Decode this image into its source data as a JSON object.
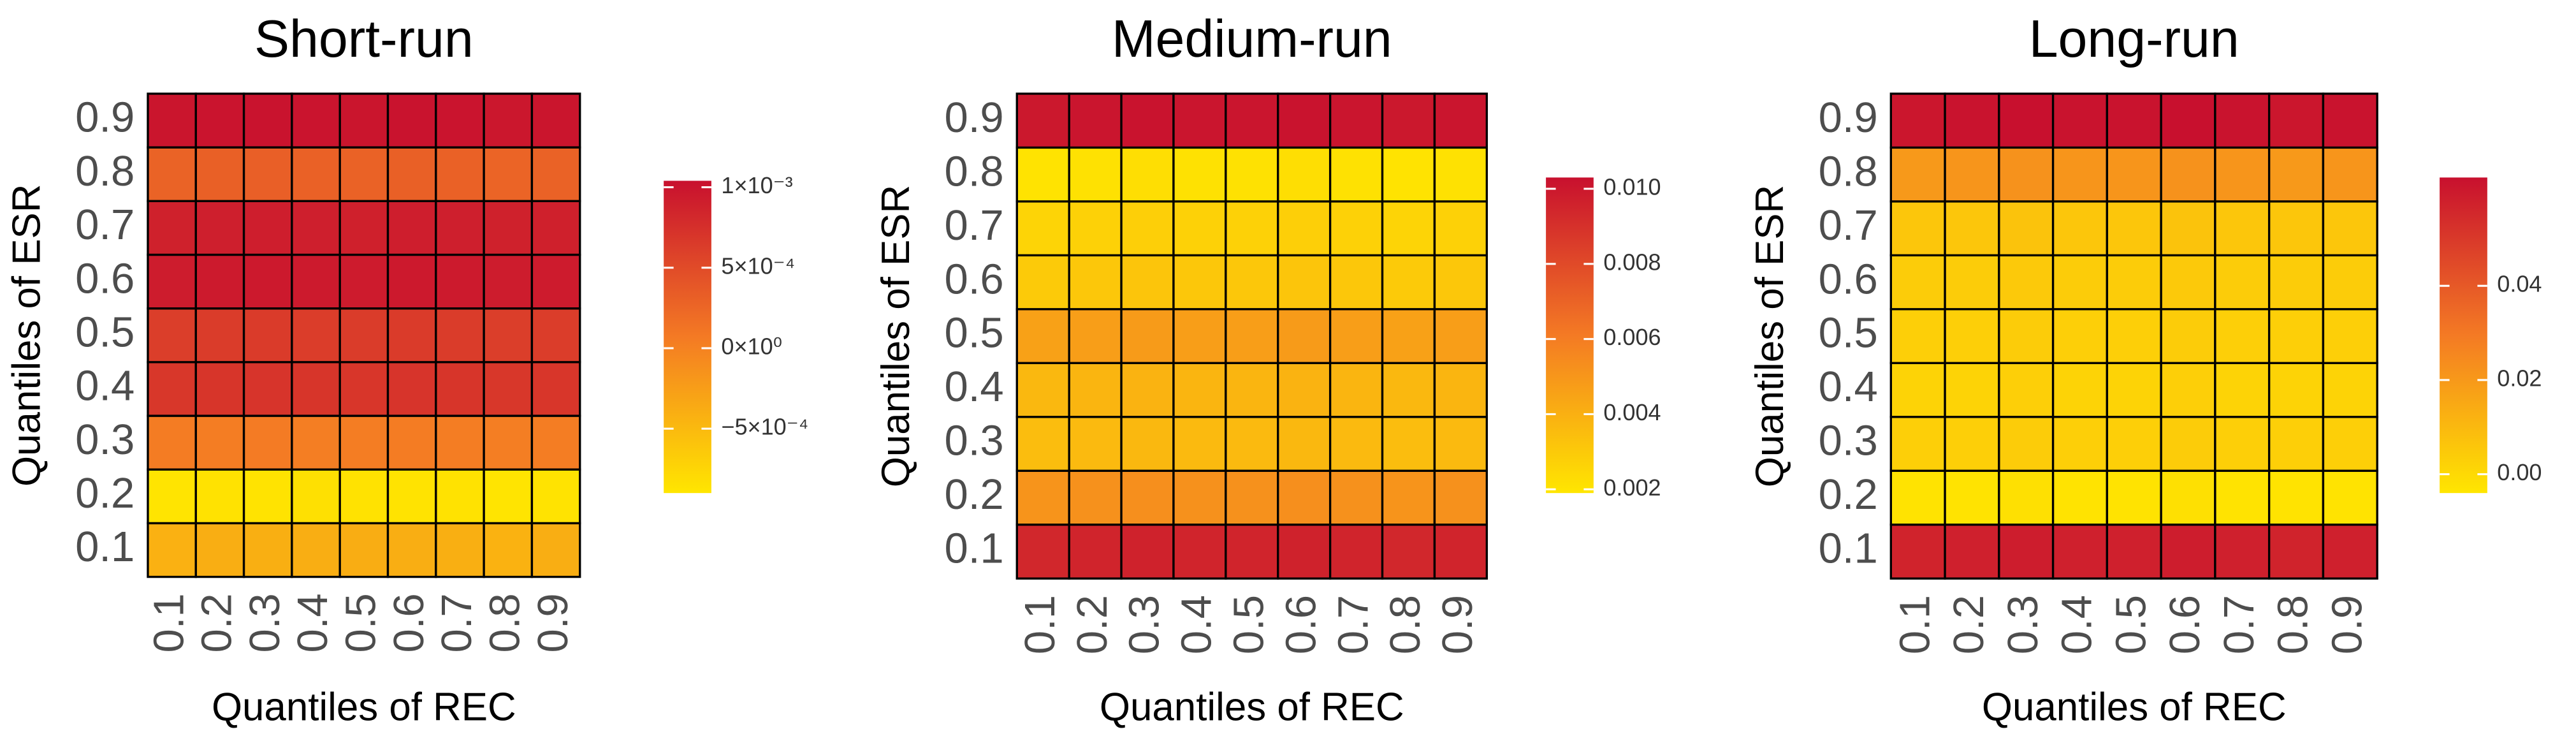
{
  "chart_data": [
    {
      "type": "heatmap",
      "title": "Short-run",
      "x_label": "Quantiles of REC",
      "y_label": "Quantiles of ESR",
      "x_categories": [
        "0.1",
        "0.2",
        "0.3",
        "0.4",
        "0.5",
        "0.6",
        "0.7",
        "0.8",
        "0.9"
      ],
      "y_categories": [
        "0.1",
        "0.2",
        "0.3",
        "0.4",
        "0.5",
        "0.6",
        "0.7",
        "0.8",
        "0.9"
      ],
      "values": [
        [
          -0.00042,
          -0.0004,
          -0.00041,
          -0.0004,
          -0.00039,
          -0.0004,
          -0.00041,
          -0.00043,
          -0.0004
        ],
        [
          -0.00088,
          -0.00086,
          -0.00087,
          -0.00085,
          -0.00086,
          -0.00087,
          -0.00086,
          -0.00088,
          -0.00087
        ],
        [
          5e-05,
          4e-05,
          6e-05,
          3e-05,
          4e-05,
          5e-05,
          4e-05,
          3e-05,
          4e-05
        ],
        [
          0.00068,
          0.0007,
          0.00071,
          0.0007,
          0.00069,
          0.00071,
          0.0007,
          0.00068,
          0.00069
        ],
        [
          0.00062,
          0.00064,
          0.00065,
          0.00063,
          0.00064,
          0.00065,
          0.00064,
          0.00062,
          0.00063
        ],
        [
          0.00093,
          0.00095,
          0.00096,
          0.00095,
          0.00094,
          0.00096,
          0.00095,
          0.00093,
          0.00094
        ],
        [
          0.00088,
          0.0009,
          0.00091,
          0.0009,
          0.00089,
          0.00091,
          0.0009,
          0.00088,
          0.00089
        ],
        [
          0.00028,
          0.00031,
          0.00032,
          0.0003,
          0.00029,
          0.00031,
          0.0003,
          0.00027,
          0.00029
        ],
        [
          0.00099,
          0.001,
          0.00101,
          0.001,
          0.00099,
          0.00101,
          0.001,
          0.00098,
          0.00099
        ]
      ],
      "colors": [
        "#FFE600",
        "#F47A24",
        "#C8102E"
      ],
      "clim": [
        -0.0009,
        0.00104
      ],
      "cticks": [
        {
          "value": 0.001,
          "label": "1×10⁻³"
        },
        {
          "value": 0.0005,
          "label": "5×10⁻⁴"
        },
        {
          "value": 0,
          "label": "0×10⁰"
        },
        {
          "value": -0.0005,
          "label": "−5×10⁻⁴"
        }
      ]
    },
    {
      "type": "heatmap",
      "title": "Medium-run",
      "x_label": "Quantiles of REC",
      "y_label": "Quantiles of ESR",
      "x_categories": [
        "0.1",
        "0.2",
        "0.3",
        "0.4",
        "0.5",
        "0.6",
        "0.7",
        "0.8",
        "0.9"
      ],
      "y_categories": [
        "0.1",
        "0.2",
        "0.3",
        "0.4",
        "0.5",
        "0.6",
        "0.7",
        "0.8",
        "0.9"
      ],
      "values": [
        [
          0.0094,
          0.0095,
          0.0096,
          0.0095,
          0.0095,
          0.0096,
          0.0095,
          0.0094,
          0.0095
        ],
        [
          0.0051,
          0.0052,
          0.0053,
          0.0052,
          0.0052,
          0.0053,
          0.0052,
          0.0051,
          0.0052
        ],
        [
          0.0035,
          0.0036,
          0.0037,
          0.0036,
          0.0036,
          0.0037,
          0.0036,
          0.0035,
          0.0036
        ],
        [
          0.0037,
          0.0038,
          0.0039,
          0.0038,
          0.0038,
          0.0039,
          0.0038,
          0.0037,
          0.0038
        ],
        [
          0.0046,
          0.0047,
          0.0048,
          0.0047,
          0.0047,
          0.0048,
          0.0047,
          0.0046,
          0.0047
        ],
        [
          0.003,
          0.0031,
          0.0032,
          0.0031,
          0.0031,
          0.0032,
          0.0031,
          0.003,
          0.0031
        ],
        [
          0.0026,
          0.0027,
          0.0028,
          0.0027,
          0.0027,
          0.0028,
          0.0027,
          0.0026,
          0.0027
        ],
        [
          0.002,
          0.0021,
          0.0022,
          0.0021,
          0.0021,
          0.0022,
          0.0021,
          0.002,
          0.0021
        ],
        [
          0.01,
          0.0101,
          0.0102,
          0.0101,
          0.0101,
          0.0102,
          0.0101,
          0.01,
          0.0101
        ]
      ],
      "colors": [
        "#FFE600",
        "#F47A24",
        "#C8102E"
      ],
      "clim": [
        0.0019,
        0.0103
      ],
      "cticks": [
        {
          "value": 0.01,
          "label": "0.010"
        },
        0.008,
        0.006,
        0.004,
        0.002
      ]
    },
    {
      "type": "heatmap",
      "title": "Long-run",
      "x_label": "Quantiles of REC",
      "y_label": "Quantiles of ESR",
      "x_categories": [
        "0.1",
        "0.2",
        "0.3",
        "0.4",
        "0.5",
        "0.6",
        "0.7",
        "0.8",
        "0.9"
      ],
      "y_categories": [
        "0.1",
        "0.2",
        "0.3",
        "0.4",
        "0.5",
        "0.6",
        "0.7",
        "0.8",
        "0.9"
      ],
      "values": [
        [
          0.057,
          0.058,
          0.059,
          0.058,
          0.058,
          0.059,
          0.058,
          0.057,
          0.058
        ],
        [
          -0.003,
          -0.003,
          -0.002,
          -0.003,
          -0.003,
          -0.002,
          -0.003,
          -0.003,
          -0.003
        ],
        [
          0.003,
          0.003,
          0.004,
          0.003,
          0.003,
          0.004,
          0.003,
          0.003,
          0.003
        ],
        [
          0.002,
          0.002,
          0.003,
          0.002,
          0.002,
          0.003,
          0.002,
          0.002,
          0.002
        ],
        [
          0.003,
          0.003,
          0.004,
          0.003,
          0.003,
          0.004,
          0.003,
          0.003,
          0.003
        ],
        [
          0.004,
          0.004,
          0.005,
          0.004,
          0.004,
          0.005,
          0.004,
          0.004,
          0.004
        ],
        [
          0.006,
          0.006,
          0.007,
          0.006,
          0.006,
          0.007,
          0.006,
          0.006,
          0.006
        ],
        [
          0.02,
          0.021,
          0.022,
          0.021,
          0.021,
          0.022,
          0.021,
          0.02,
          0.021
        ],
        [
          0.061,
          0.062,
          0.063,
          0.062,
          0.062,
          0.063,
          0.062,
          0.061,
          0.062
        ]
      ],
      "colors": [
        "#FFE600",
        "#F47A24",
        "#C8102E"
      ],
      "clim": [
        -0.004,
        0.063
      ],
      "cticks": [
        0.04,
        0.02,
        {
          "value": 0,
          "label": "0.00"
        }
      ]
    }
  ]
}
